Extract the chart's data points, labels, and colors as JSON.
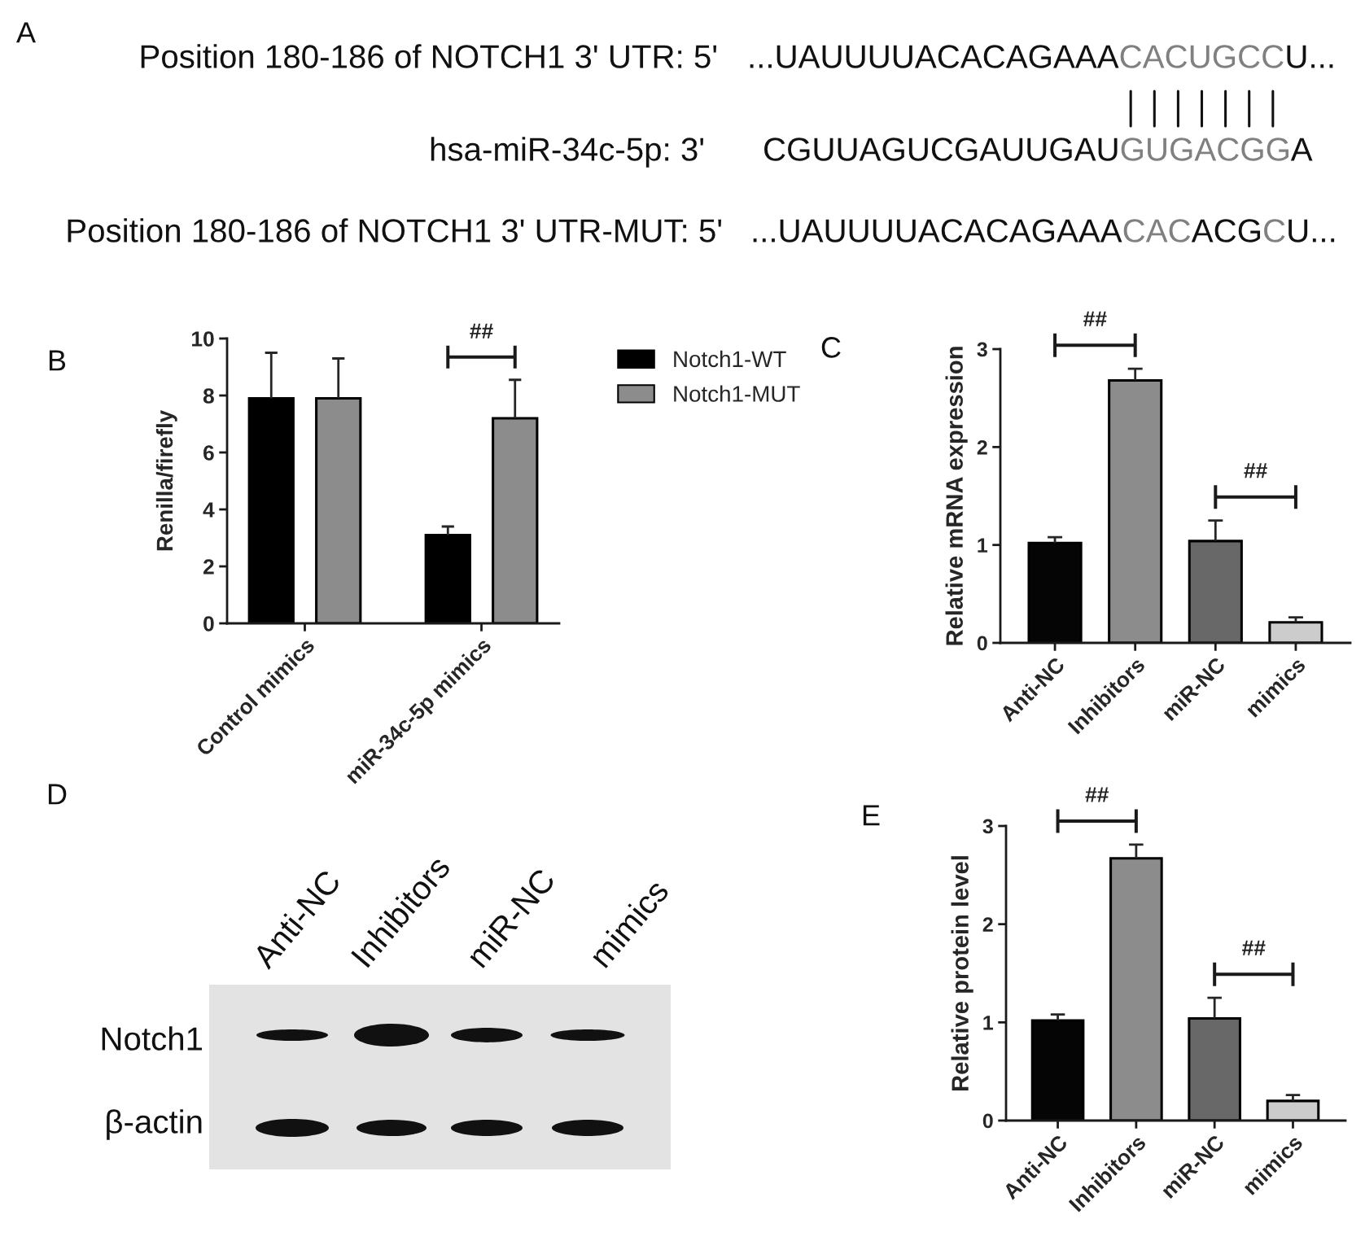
{
  "chart_data": [
    {
      "type": "other",
      "title": "A",
      "annotations": [
        "Position 180-186 of NOTCH1 3' UTR: 5'",
        "...UAUUUUACACAGAAA",
        "CACUGCC",
        "U...",
        "hsa-miR-34c-5p: 3'",
        "CGUUAGUCGAUUGAU",
        "GUGACGG",
        "A",
        "Position 180-186 of NOTCH1 3' UTR-MUT: 5'",
        "...UAUUUUACACAGAAA",
        "CAC",
        "ACG",
        "C",
        "U..."
      ]
    },
    {
      "type": "bar",
      "title": "B",
      "categories": [
        "Control mimics",
        "miR-34c-5p mimics"
      ],
      "series": [
        {
          "name": "Notch1-WT",
          "color": "#000000",
          "values": [
            7.9,
            3.1
          ],
          "errors": [
            [
              7.9,
              9.5
            ],
            [
              3.1,
              3.4
            ]
          ]
        },
        {
          "name": "Notch1-MUT",
          "color": "#8c8c8c",
          "values": [
            7.9,
            7.2
          ],
          "errors": [
            [
              7.9,
              9.3
            ],
            [
              7.2,
              8.55
            ]
          ]
        }
      ],
      "ylabel": "Renilla/firefly",
      "ylim": [
        0,
        10
      ],
      "yticks": [
        0,
        2,
        4,
        6,
        8,
        10
      ],
      "legend": "top right",
      "annotations": [
        "##"
      ]
    },
    {
      "type": "bar",
      "title": "C",
      "categories": [
        "Anti-NC",
        "Inhibitors",
        "miR-NC",
        "mimics"
      ],
      "values": [
        1.02,
        2.68,
        1.04,
        0.21
      ],
      "colors": [
        "#050505",
        "#8c8c8c",
        "#686868",
        "#cccccc"
      ],
      "errors": [
        [
          1.02,
          1.08
        ],
        [
          2.68,
          2.8
        ],
        [
          1.04,
          1.25
        ],
        [
          0.21,
          0.26
        ]
      ],
      "ylabel": "Relative mRNA expression",
      "ylim": [
        0,
        3
      ],
      "yticks": [
        0,
        1,
        2,
        3
      ],
      "annotations": [
        "##",
        "##"
      ]
    },
    {
      "type": "other",
      "title": "D",
      "annotations": [
        "Anti-NC",
        "Inhibitors",
        "miR-NC",
        "mimics",
        "Notch1",
        "β-actin"
      ]
    },
    {
      "type": "bar",
      "title": "E",
      "categories": [
        "Anti-NC",
        "Inhibitors",
        "miR-NC",
        "mimics"
      ],
      "values": [
        1.02,
        2.67,
        1.04,
        0.2
      ],
      "colors": [
        "#050505",
        "#8c8c8c",
        "#686868",
        "#cccccc"
      ],
      "errors": [
        [
          1.02,
          1.08
        ],
        [
          2.67,
          2.81
        ],
        [
          1.04,
          1.25
        ],
        [
          0.2,
          0.26
        ]
      ],
      "ylabel": "Relative protein level",
      "ylim": [
        0,
        3
      ],
      "yticks": [
        0,
        1,
        2,
        3
      ],
      "annotations": [
        "##",
        "##"
      ]
    }
  ]
}
